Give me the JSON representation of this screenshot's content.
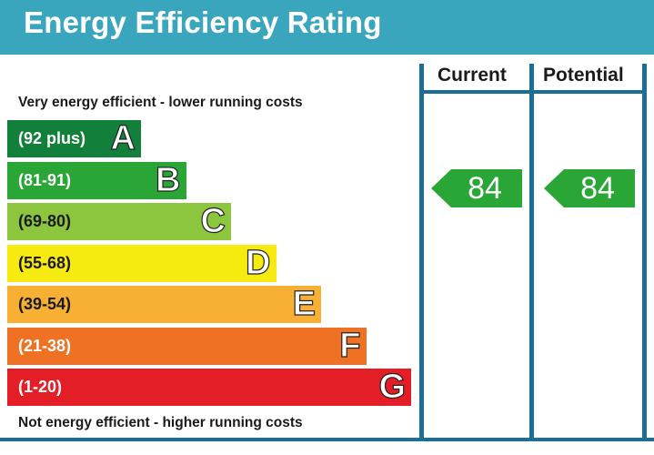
{
  "header": {
    "title": "Energy Efficiency Rating"
  },
  "columns": {
    "current": "Current",
    "potential": "Potential"
  },
  "captions": {
    "top": "Very energy efficient - lower running costs",
    "bottom": "Not energy efficient - higher running costs"
  },
  "chart_data": {
    "type": "bar",
    "bands": [
      {
        "range": "(92 plus)",
        "letter": "A",
        "color": "#12803b"
      },
      {
        "range": "(81-91)",
        "letter": "B",
        "color": "#2aa637"
      },
      {
        "range": "(69-80)",
        "letter": "C",
        "color": "#8cc63e"
      },
      {
        "range": "(55-68)",
        "letter": "D",
        "color": "#f6ea10"
      },
      {
        "range": "(39-54)",
        "letter": "E",
        "color": "#f7b034"
      },
      {
        "range": "(21-38)",
        "letter": "F",
        "color": "#ee7124"
      },
      {
        "range": "(1-20)",
        "letter": "G",
        "color": "#e41e26"
      }
    ],
    "current": 84,
    "potential": 84,
    "rating_color": "#2aa637"
  }
}
